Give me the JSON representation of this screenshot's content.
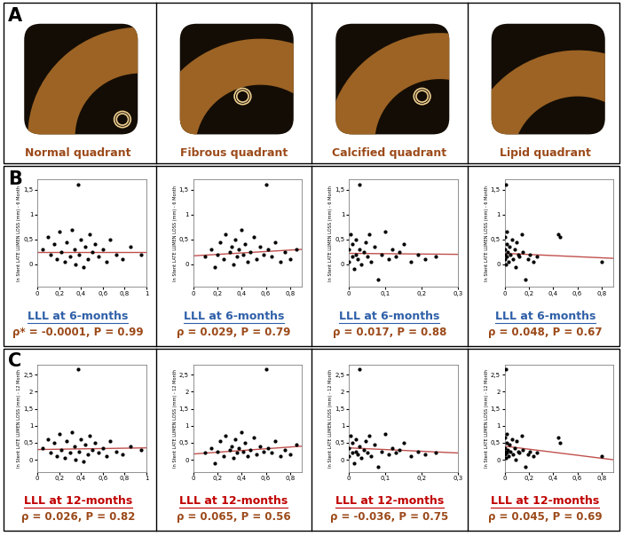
{
  "panel_letters": [
    "A",
    "B",
    "C"
  ],
  "images": [
    "Normal quadrant",
    "Fibrous quadrant",
    "Calcified quadrant",
    "Lipid quadrant"
  ],
  "chart_data": [
    {
      "type": "scatter",
      "title": "LLL at 6-months",
      "subtitle": "ρ* = -0.0001, P = 0.99",
      "y_label": "In Stent LATE LUMEN LOSS (mm) - 6 Month",
      "xlim": [
        0,
        1
      ],
      "xticks": [
        0,
        {
          "value": 0.2,
          "label": "0,2"
        },
        {
          "value": 0.4,
          "label": "0,4"
        },
        {
          "value": 0.6,
          "label": "0,6"
        },
        {
          "value": 0.8,
          "label": "0,8"
        },
        1
      ],
      "ylim": [
        -0.45,
        1.7
      ],
      "yticks": [
        0,
        {
          "value": 0.5,
          "label": "0,5"
        },
        1,
        {
          "value": 1.5,
          "label": "1,5"
        }
      ],
      "series": [
        {
          "type": "scatter",
          "color": "#000000",
          "x": [
            0.05,
            0.1,
            0.12,
            0.15,
            0.18,
            0.2,
            0.22,
            0.25,
            0.27,
            0.3,
            0.32,
            0.34,
            0.35,
            0.37,
            0.38,
            0.4,
            0.42,
            0.44,
            0.46,
            0.48,
            0.5,
            0.53,
            0.56,
            0.6,
            0.63,
            0.67,
            0.72,
            0.78,
            0.85,
            0.95
          ],
          "values": [
            0.3,
            0.55,
            0.2,
            0.4,
            0.1,
            0.65,
            0.25,
            0.05,
            0.45,
            0.15,
            0.7,
            0.3,
            0.0,
            1.6,
            0.2,
            0.5,
            -0.05,
            0.35,
            0.1,
            0.6,
            0.25,
            0.4,
            0.15,
            0.3,
            0.05,
            0.5,
            0.2,
            0.1,
            0.35,
            0.2
          ]
        },
        {
          "type": "line",
          "color": "#c0504d",
          "x": [
            0,
            1
          ],
          "values": [
            0.24,
            0.24
          ]
        }
      ]
    },
    {
      "type": "scatter",
      "title": "LLL at 6-months",
      "subtitle": "ρ = 0.029, P = 0.79",
      "y_label": "In Stent LATE LUMEN LOSS (mm) - 6 Month",
      "xlim": [
        0,
        0.9
      ],
      "xticks": [
        0,
        {
          "value": 0.2,
          "label": "0,2"
        },
        {
          "value": 0.4,
          "label": "0,4"
        },
        {
          "value": 0.6,
          "label": "0,6"
        },
        {
          "value": 0.8,
          "label": "0,8"
        }
      ],
      "ylim": [
        -0.45,
        1.7
      ],
      "yticks": [
        0,
        {
          "value": 0.5,
          "label": "0,5"
        },
        1,
        {
          "value": 1.5,
          "label": "1,5"
        }
      ],
      "series": [
        {
          "type": "scatter",
          "color": "#000000",
          "x": [
            0.1,
            0.15,
            0.18,
            0.2,
            0.22,
            0.25,
            0.27,
            0.3,
            0.32,
            0.33,
            0.35,
            0.36,
            0.38,
            0.4,
            0.41,
            0.43,
            0.45,
            0.47,
            0.5,
            0.52,
            0.55,
            0.58,
            0.6,
            0.62,
            0.65,
            0.68,
            0.72,
            0.76,
            0.8,
            0.85
          ],
          "values": [
            0.15,
            0.3,
            -0.05,
            0.2,
            0.45,
            0.1,
            0.6,
            0.25,
            0.35,
            0.0,
            0.5,
            0.15,
            0.3,
            0.7,
            0.2,
            0.4,
            0.05,
            0.25,
            0.55,
            0.1,
            0.35,
            0.2,
            1.6,
            0.3,
            0.15,
            0.45,
            0.05,
            0.25,
            0.1,
            0.3
          ]
        },
        {
          "type": "line",
          "color": "#c0504d",
          "x": [
            0,
            0.9
          ],
          "values": [
            0.17,
            0.3
          ]
        }
      ]
    },
    {
      "type": "scatter",
      "title": "LLL at 6-months",
      "subtitle": "ρ = 0.017, P = 0.88",
      "y_label": "In Stent LATE LUMEN LOSS (mm) - 6 Month",
      "xlim": [
        0,
        0.3
      ],
      "xticks": [
        0,
        {
          "value": 0.1,
          "label": "0,1"
        },
        {
          "value": 0.2,
          "label": "0,2"
        },
        {
          "value": 0.3,
          "label": "0,3"
        }
      ],
      "ylim": [
        -0.45,
        1.7
      ],
      "yticks": [
        0,
        {
          "value": 0.5,
          "label": "0,5"
        },
        1,
        {
          "value": 1.5,
          "label": "1,5"
        }
      ],
      "series": [
        {
          "type": "scatter",
          "color": "#000000",
          "x": [
            0,
            0,
            0.005,
            0.01,
            0.01,
            0.015,
            0.02,
            0.02,
            0.025,
            0.03,
            0.03,
            0.035,
            0.04,
            0.045,
            0.05,
            0.055,
            0.06,
            0.07,
            0.08,
            0.09,
            0.1,
            0.11,
            0.12,
            0.13,
            0.14,
            0.15,
            0.17,
            0.19,
            0.21,
            0.24
          ],
          "values": [
            0.3,
            0.05,
            0.6,
            0.15,
            0.4,
            -0.1,
            0.2,
            0.5,
            0.1,
            1.6,
            0.3,
            0.0,
            0.25,
            0.45,
            0.15,
            0.6,
            0.05,
            0.35,
            -0.3,
            0.2,
            0.65,
            0.1,
            0.3,
            0.15,
            0.25,
            0.4,
            0.05,
            0.2,
            0.1,
            0.15
          ]
        },
        {
          "type": "line",
          "color": "#c0504d",
          "x": [
            0,
            0.3
          ],
          "values": [
            0.22,
            0.2
          ]
        }
      ]
    },
    {
      "type": "scatter",
      "title": "LLL at 6-months",
      "subtitle": "ρ = 0.048, P = 0.67",
      "y_label": "In Stent LATE LUMEN LOSS (mm) - 6 Month",
      "xlim": [
        0,
        0.9
      ],
      "xticks": [
        0,
        {
          "value": 0.2,
          "label": "0,2"
        },
        {
          "value": 0.4,
          "label": "0,4"
        },
        {
          "value": 0.6,
          "label": "0,6"
        },
        {
          "value": 0.8,
          "label": "0,8"
        }
      ],
      "ylim": [
        -0.45,
        1.7
      ],
      "yticks": [
        0,
        {
          "value": 0.5,
          "label": "0,5"
        },
        1,
        {
          "value": 1.5,
          "label": "1,5"
        }
      ],
      "series": [
        {
          "type": "scatter",
          "color": "#000000",
          "x": [
            0,
            0,
            0,
            0.005,
            0.01,
            0.01,
            0.015,
            0.02,
            0.02,
            0.025,
            0.03,
            0.04,
            0.05,
            0.06,
            0.07,
            0.08,
            0.09,
            0.1,
            0.11,
            0.12,
            0.14,
            0.15,
            0.17,
            0.19,
            0.21,
            0.24,
            0.27,
            0.44,
            0.46,
            0.8
          ],
          "values": [
            0.1,
            0.3,
            0.55,
            0.2,
            1.6,
            0.0,
            0.4,
            0.15,
            0.65,
            0.25,
            0.05,
            0.35,
            0.2,
            0.5,
            0.1,
            0.3,
            -0.05,
            0.45,
            0.2,
            0.15,
            0.6,
            0.25,
            -0.3,
            0.1,
            0.2,
            0.05,
            0.15,
            0.6,
            0.55,
            0.05
          ]
        },
        {
          "type": "line",
          "color": "#c0504d",
          "x": [
            0,
            0.9
          ],
          "values": [
            0.22,
            0.12
          ]
        }
      ]
    },
    {
      "type": "scatter",
      "title": "LLL at 12-months",
      "subtitle": "ρ = 0.026, P = 0.82",
      "y_label": "In Stent LATE LUMEN LOSS (mm) - 12 Month",
      "xlim": [
        0,
        1
      ],
      "xticks": [
        0,
        {
          "value": 0.2,
          "label": "0,2"
        },
        {
          "value": 0.4,
          "label": "0,4"
        },
        {
          "value": 0.6,
          "label": "0,6"
        },
        {
          "value": 0.8,
          "label": "0,8"
        },
        1
      ],
      "ylim": [
        -0.35,
        2.8
      ],
      "yticks": [
        0,
        {
          "value": 0.5,
          "label": "0,5"
        },
        1,
        {
          "value": 1.5,
          "label": "1,5"
        },
        2,
        {
          "value": 2.5,
          "label": "2,5"
        }
      ],
      "series": [
        {
          "type": "scatter",
          "color": "#000000",
          "x": [
            0.05,
            0.1,
            0.12,
            0.15,
            0.18,
            0.2,
            0.22,
            0.25,
            0.27,
            0.3,
            0.32,
            0.34,
            0.35,
            0.37,
            0.38,
            0.4,
            0.42,
            0.44,
            0.46,
            0.48,
            0.5,
            0.53,
            0.56,
            0.6,
            0.63,
            0.67,
            0.72,
            0.78,
            0.85,
            0.95
          ],
          "values": [
            0.35,
            0.6,
            0.2,
            0.5,
            0.1,
            0.75,
            0.3,
            0.05,
            0.55,
            0.2,
            0.8,
            0.4,
            0.0,
            2.65,
            0.25,
            0.6,
            -0.05,
            0.45,
            0.15,
            0.7,
            0.3,
            0.5,
            0.2,
            0.35,
            0.1,
            0.55,
            0.25,
            0.15,
            0.4,
            0.3
          ]
        },
        {
          "type": "line",
          "color": "#c0504d",
          "x": [
            0,
            1
          ],
          "values": [
            0.3,
            0.35
          ]
        }
      ]
    },
    {
      "type": "scatter",
      "title": "LLL at 12-months",
      "subtitle": "ρ = 0.065, P = 0.56",
      "y_label": "In Stent LATE LUMEN LOSS (mm) - 12 Month",
      "xlim": [
        0,
        0.9
      ],
      "xticks": [
        0,
        {
          "value": 0.2,
          "label": "0,2"
        },
        {
          "value": 0.4,
          "label": "0,4"
        },
        {
          "value": 0.6,
          "label": "0,6"
        },
        {
          "value": 0.8,
          "label": "0,8"
        }
      ],
      "ylim": [
        -0.35,
        2.8
      ],
      "yticks": [
        0,
        {
          "value": 0.5,
          "label": "0,5"
        },
        1,
        {
          "value": 1.5,
          "label": "1,5"
        },
        2,
        {
          "value": 2.5,
          "label": "2,5"
        }
      ],
      "series": [
        {
          "type": "scatter",
          "color": "#000000",
          "x": [
            0.1,
            0.15,
            0.18,
            0.2,
            0.22,
            0.25,
            0.27,
            0.3,
            0.32,
            0.33,
            0.35,
            0.36,
            0.38,
            0.4,
            0.41,
            0.43,
            0.45,
            0.47,
            0.5,
            0.52,
            0.55,
            0.58,
            0.6,
            0.62,
            0.65,
            0.68,
            0.72,
            0.76,
            0.8,
            0.85
          ],
          "values": [
            0.2,
            0.35,
            -0.1,
            0.25,
            0.55,
            0.1,
            0.7,
            0.3,
            0.4,
            0.05,
            0.6,
            0.2,
            0.35,
            0.8,
            0.25,
            0.5,
            0.1,
            0.3,
            0.65,
            0.15,
            0.4,
            0.25,
            2.65,
            0.35,
            0.2,
            0.55,
            0.1,
            0.3,
            0.15,
            0.45
          ]
        },
        {
          "type": "line",
          "color": "#c0504d",
          "x": [
            0,
            0.9
          ],
          "values": [
            0.17,
            0.4
          ]
        }
      ]
    },
    {
      "type": "scatter",
      "title": "LLL at 12-months",
      "subtitle": "ρ = -0.036, P = 0.75",
      "y_label": "In Stent LATE LUMEN LOSS (mm) - 12 Month",
      "xlim": [
        0,
        0.3
      ],
      "xticks": [
        0,
        {
          "value": 0.1,
          "label": "0,1"
        },
        {
          "value": 0.2,
          "label": "0,2"
        },
        {
          "value": 0.3,
          "label": "0,3"
        }
      ],
      "ylim": [
        -0.35,
        2.8
      ],
      "yticks": [
        0,
        {
          "value": 0.5,
          "label": "0,5"
        },
        1,
        {
          "value": 1.5,
          "label": "1,5"
        },
        2,
        {
          "value": 2.5,
          "label": "2,5"
        }
      ],
      "series": [
        {
          "type": "scatter",
          "color": "#000000",
          "x": [
            0,
            0,
            0.005,
            0.01,
            0.01,
            0.015,
            0.02,
            0.02,
            0.025,
            0.03,
            0.03,
            0.035,
            0.04,
            0.045,
            0.05,
            0.055,
            0.06,
            0.07,
            0.08,
            0.09,
            0.1,
            0.11,
            0.12,
            0.13,
            0.14,
            0.15,
            0.17,
            0.19,
            0.21,
            0.24
          ],
          "values": [
            0.35,
            0.1,
            0.7,
            0.2,
            0.5,
            -0.1,
            0.25,
            0.6,
            0.15,
            2.65,
            0.4,
            0.05,
            0.3,
            0.55,
            0.2,
            0.7,
            0.1,
            0.45,
            -0.2,
            0.25,
            0.75,
            0.15,
            0.35,
            0.2,
            0.3,
            0.5,
            0.1,
            0.25,
            0.15,
            0.2
          ]
        },
        {
          "type": "line",
          "color": "#c0504d",
          "x": [
            0,
            0.3
          ],
          "values": [
            0.35,
            0.2
          ]
        }
      ]
    },
    {
      "type": "scatter",
      "title": "LLL at 12-months",
      "subtitle": "ρ = 0.045, P = 0.69",
      "y_label": "In Stent LATE LUMEN LOSS (mm) - 12 Month",
      "xlim": [
        0,
        0.9
      ],
      "xticks": [
        0,
        {
          "value": 0.2,
          "label": "0,2"
        },
        {
          "value": 0.4,
          "label": "0,4"
        },
        {
          "value": 0.6,
          "label": "0,6"
        },
        {
          "value": 0.8,
          "label": "0,8"
        }
      ],
      "ylim": [
        -0.35,
        2.8
      ],
      "yticks": [
        0,
        {
          "value": 0.5,
          "label": "0,5"
        },
        1,
        {
          "value": 1.5,
          "label": "1,5"
        },
        2,
        {
          "value": 2.5,
          "label": "2,5"
        }
      ],
      "series": [
        {
          "type": "scatter",
          "color": "#000000",
          "x": [
            0,
            0,
            0,
            0.005,
            0.01,
            0.01,
            0.015,
            0.02,
            0.02,
            0.025,
            0.03,
            0.04,
            0.05,
            0.06,
            0.07,
            0.08,
            0.09,
            0.1,
            0.11,
            0.12,
            0.14,
            0.15,
            0.17,
            0.19,
            0.21,
            0.24,
            0.27,
            0.44,
            0.46,
            0.8
          ],
          "values": [
            0.15,
            0.35,
            0.65,
            0.25,
            2.65,
            0.05,
            0.5,
            0.2,
            0.75,
            0.3,
            0.1,
            0.45,
            0.25,
            0.6,
            0.15,
            0.35,
            0.0,
            0.55,
            0.25,
            0.2,
            0.7,
            0.3,
            -0.2,
            0.15,
            0.25,
            0.1,
            0.2,
            0.65,
            0.5,
            0.1
          ]
        },
        {
          "type": "line",
          "color": "#c0504d",
          "x": [
            0,
            0.9
          ],
          "values": [
            0.4,
            0.0
          ]
        }
      ]
    }
  ]
}
